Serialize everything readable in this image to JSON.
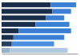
{
  "chart_data": {
    "type": "bar",
    "orientation": "horizontal",
    "stacked": true,
    "categories": [
      null,
      null,
      null,
      null,
      null,
      null,
      null,
      null
    ],
    "series": [
      {
        "values": [
          58,
          60,
          52,
          40,
          20,
          14,
          12,
          10
        ],
        "colors": [
          "#1a2e4a",
          "#1a2e4a",
          "#1a2e4a",
          "#1a2e4a",
          "#1a2e4a",
          "#1a2e4a",
          "#263d5e",
          "#9ab0c8"
        ]
      },
      {
        "values": [
          30,
          22,
          22,
          40,
          62,
          60,
          50,
          68
        ],
        "colors": [
          "#3a7fd4",
          "#3a7fd4",
          "#3a7fd4",
          "#3a7fd4",
          "#3a7fd4",
          "#3a7fd4",
          "#4a90e0",
          "#b0c8e0"
        ]
      }
    ],
    "xlim": [
      0,
      89.76
    ],
    "tick_labels": false,
    "grid": false
  }
}
